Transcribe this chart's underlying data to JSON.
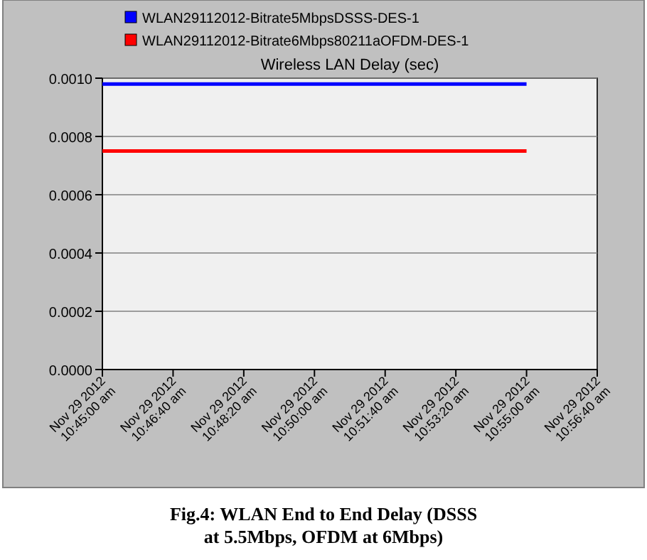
{
  "chart_data": {
    "type": "line",
    "title": "Wireless LAN Delay (sec)",
    "annotations": [
      "Fig.4: WLAN End to End Delay (DSSS at 5.5Mbps, OFDM at 6Mbps)"
    ],
    "categories": [
      "Nov 29 2012\n10:45:00 am",
      "Nov 29 2012\n10:46:40 am",
      "Nov 29 2012\n10:48:20 am",
      "Nov 29 2012\n10:50:00 am",
      "Nov 29 2012\n10:51:40 am",
      "Nov 29 2012\n10:53:20 am",
      "Nov 29 2012\n10:55:00 am",
      "Nov 29 2012\n10:56:40 am"
    ],
    "ylim": [
      0,
      0.001
    ],
    "yticks": [
      {
        "value": 0,
        "label": "0.0000"
      },
      {
        "value": 0.0002,
        "label": "0.0002"
      },
      {
        "value": 0.0004,
        "label": "0.0004"
      },
      {
        "value": 0.0006,
        "label": "0.0006"
      },
      {
        "value": 0.0008,
        "label": "0.0008"
      },
      {
        "value": 0.001,
        "label": "0.0010"
      }
    ],
    "grid": "y",
    "legend": "top left",
    "marker": "none",
    "line_style": "solid",
    "series": [
      {
        "name": "WLAN29112012-Bitrate5MbpsDSSS-DES-1",
        "color": "#0000ff",
        "values": [
          0.00098,
          0.00098,
          0.00098,
          0.00098,
          0.00098,
          0.00098,
          0.00098,
          null
        ]
      },
      {
        "name": "WLAN29112012-Bitrate6Mbps80211aOFDM-DES-1",
        "color": "#ff0000",
        "values": [
          0.00075,
          0.00075,
          0.00075,
          0.00075,
          0.00075,
          0.00075,
          0.00075,
          null
        ]
      }
    ]
  }
}
